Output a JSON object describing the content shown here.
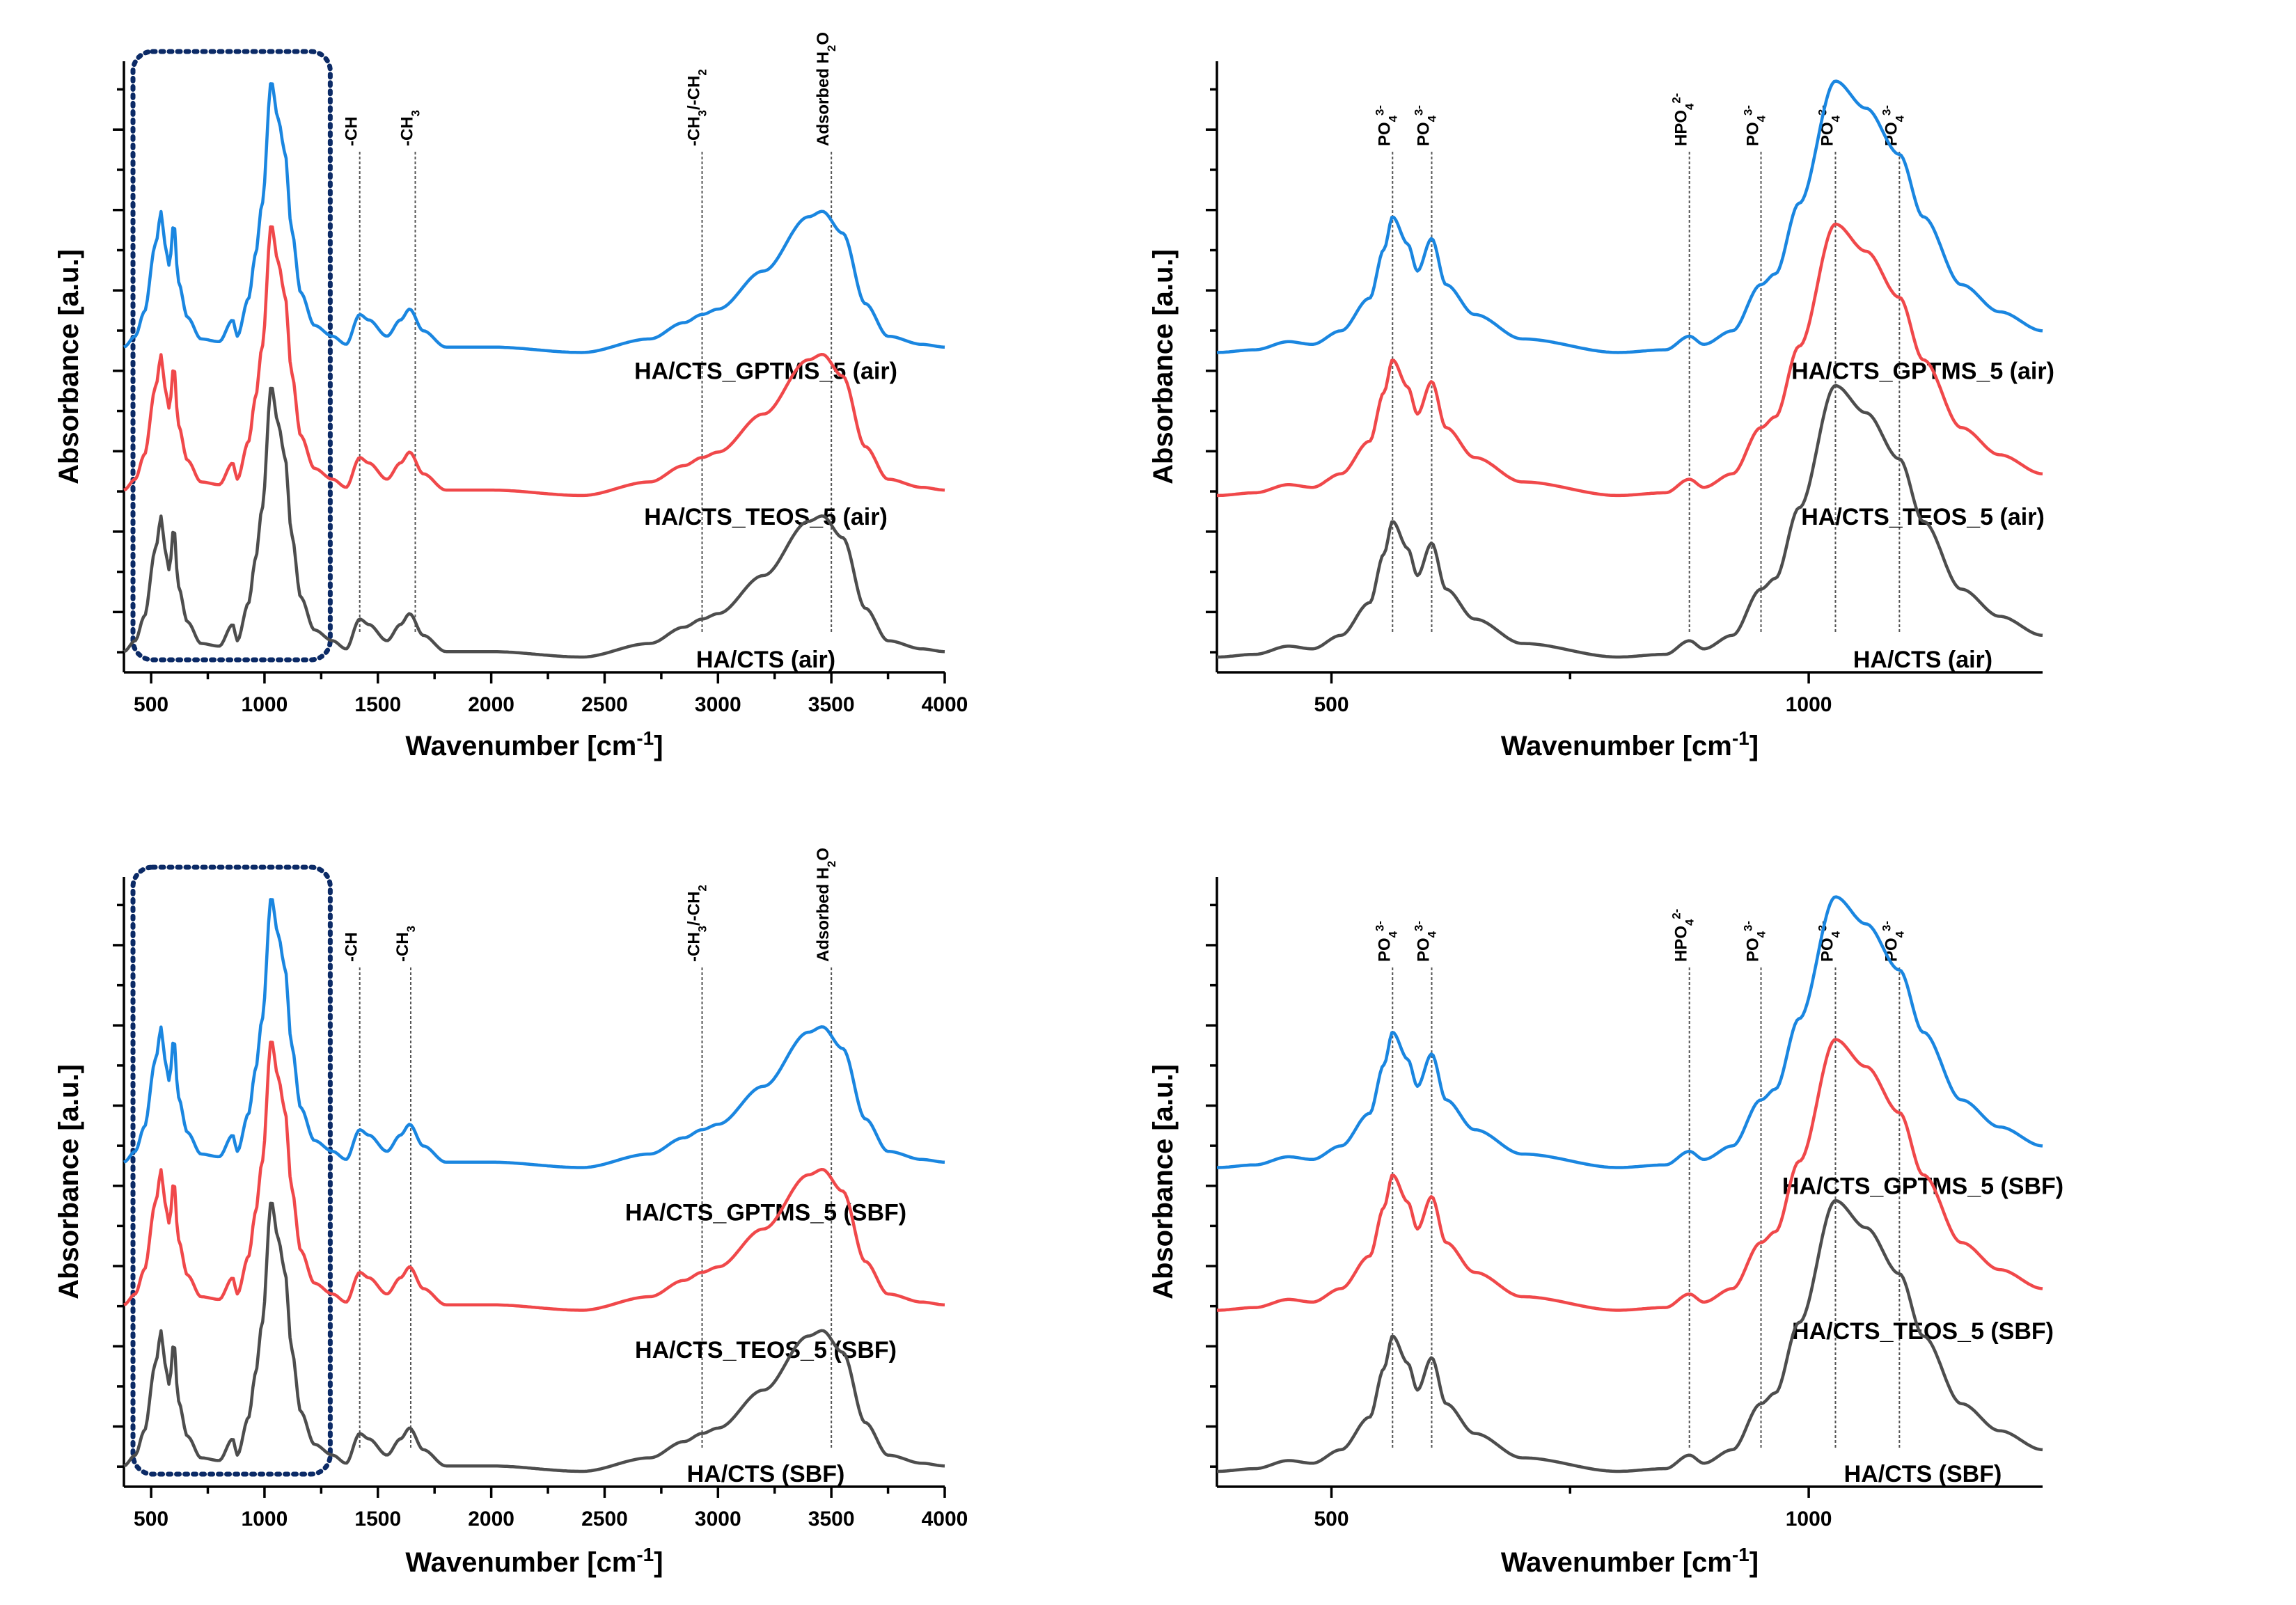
{
  "colors": {
    "blue": "#1a86e0",
    "red": "#f0484a",
    "gray": "#4d4d4d",
    "box": "#0b2a66"
  },
  "chart_data": [
    {
      "id": "a",
      "type": "line",
      "xlabel": "Wavenumber [cm-1]",
      "ylabel": "Absorbance [a.u.]",
      "xlim": [
        380,
        4000
      ],
      "ylim": [
        0,
        4.3
      ],
      "xticks": [
        500,
        1000,
        1500,
        2000,
        2500,
        3000,
        3500,
        4000
      ],
      "xtick_labels": [
        "500",
        "1000",
        "1500",
        "2000",
        "2500",
        "3000",
        "3500",
        "4000"
      ],
      "highlight_box": [
        420,
        1290
      ],
      "annotations": [
        {
          "x": 1420,
          "label": "-CH"
        },
        {
          "x": 1665,
          "label": "-CH3"
        },
        {
          "x": 2930,
          "label": "-CH3/-CH2"
        },
        {
          "x": 3500,
          "label": "Adsorbed H2O"
        }
      ],
      "series": [
        {
          "name": "HA/CTS_GPTMS_5 (air)",
          "color": "blue",
          "offset": 2.3,
          "label_y": 2.1
        },
        {
          "name": "HA/CTS_TEOS_5 (air)",
          "color": "red",
          "offset": 1.22,
          "label_y": 1.0
        },
        {
          "name": "HA/CTS (air)",
          "color": "gray",
          "offset": 0.0,
          "label_y": -0.08
        }
      ],
      "profile": [
        [
          380,
          0.02
        ],
        [
          430,
          0.06
        ],
        [
          470,
          0.15
        ],
        [
          520,
          0.4
        ],
        [
          545,
          0.52
        ],
        [
          560,
          0.4
        ],
        [
          580,
          0.32
        ],
        [
          600,
          0.48
        ],
        [
          620,
          0.26
        ],
        [
          660,
          0.13
        ],
        [
          720,
          0.05
        ],
        [
          800,
          0.04
        ],
        [
          860,
          0.12
        ],
        [
          880,
          0.06
        ],
        [
          930,
          0.2
        ],
        [
          960,
          0.36
        ],
        [
          990,
          0.55
        ],
        [
          1030,
          1.0
        ],
        [
          1060,
          0.86
        ],
        [
          1090,
          0.74
        ],
        [
          1120,
          0.45
        ],
        [
          1160,
          0.22
        ],
        [
          1220,
          0.1
        ],
        [
          1300,
          0.06
        ],
        [
          1360,
          0.03
        ],
        [
          1420,
          0.14
        ],
        [
          1460,
          0.12
        ],
        [
          1540,
          0.06
        ],
        [
          1600,
          0.12
        ],
        [
          1640,
          0.16
        ],
        [
          1700,
          0.08
        ],
        [
          1800,
          0.02
        ],
        [
          2000,
          0.02
        ],
        [
          2400,
          0.0
        ],
        [
          2700,
          0.05
        ],
        [
          2850,
          0.11
        ],
        [
          2930,
          0.14
        ],
        [
          3000,
          0.16
        ],
        [
          3200,
          0.3
        ],
        [
          3400,
          0.5
        ],
        [
          3460,
          0.52
        ],
        [
          3550,
          0.44
        ],
        [
          3650,
          0.18
        ],
        [
          3750,
          0.06
        ],
        [
          3900,
          0.03
        ],
        [
          4000,
          0.02
        ]
      ]
    },
    {
      "id": "b",
      "type": "line",
      "xlabel": "Wavenumber [cm-1]",
      "ylabel": "Absorbance [a.u.]",
      "xlim": [
        380,
        1245
      ],
      "ylim": [
        0,
        4.3
      ],
      "xticks": [
        500,
        1000
      ],
      "xtick_labels": [
        "500",
        "1000"
      ],
      "annotations": [
        {
          "x": 564,
          "label": "PO43-"
        },
        {
          "x": 605,
          "label": "PO43-"
        },
        {
          "x": 875,
          "label": "HPO42-"
        },
        {
          "x": 950,
          "label": "PO43-"
        },
        {
          "x": 1028,
          "label": "PO43-"
        },
        {
          "x": 1095,
          "label": "PO43-"
        }
      ],
      "series": [
        {
          "name": "HA/CTS_GPTMS_5 (air)",
          "color": "blue",
          "offset": 2.3,
          "label_y": 2.1
        },
        {
          "name": "HA/CTS_TEOS_5 (air)",
          "color": "red",
          "offset": 1.22,
          "label_y": 1.0
        },
        {
          "name": "HA/CTS (air)",
          "color": "gray",
          "offset": 0.0,
          "label_y": -0.08
        }
      ],
      "profile": [
        [
          380,
          0.0
        ],
        [
          420,
          0.01
        ],
        [
          455,
          0.04
        ],
        [
          480,
          0.03
        ],
        [
          510,
          0.08
        ],
        [
          540,
          0.2
        ],
        [
          555,
          0.38
        ],
        [
          564,
          0.5
        ],
        [
          580,
          0.4
        ],
        [
          590,
          0.3
        ],
        [
          605,
          0.42
        ],
        [
          620,
          0.25
        ],
        [
          650,
          0.14
        ],
        [
          700,
          0.05
        ],
        [
          800,
          0.0
        ],
        [
          850,
          0.01
        ],
        [
          875,
          0.06
        ],
        [
          890,
          0.03
        ],
        [
          920,
          0.08
        ],
        [
          950,
          0.25
        ],
        [
          965,
          0.29
        ],
        [
          990,
          0.55
        ],
        [
          1028,
          1.0
        ],
        [
          1060,
          0.9
        ],
        [
          1095,
          0.73
        ],
        [
          1120,
          0.5
        ],
        [
          1160,
          0.25
        ],
        [
          1200,
          0.15
        ],
        [
          1245,
          0.08
        ]
      ]
    },
    {
      "id": "c",
      "type": "line",
      "xlabel": "Wavenumber [cm-1]",
      "ylabel": "Absorbance [a.u.]",
      "xlim": [
        380,
        4000
      ],
      "ylim": [
        0,
        4.3
      ],
      "xticks": [
        500,
        1000,
        1500,
        2000,
        2500,
        3000,
        3500,
        4000
      ],
      "xtick_labels": [
        "500",
        "1000",
        "1500",
        "2000",
        "2500",
        "3000",
        "3500",
        "4000"
      ],
      "highlight_box": [
        420,
        1290
      ],
      "annotations": [
        {
          "x": 1420,
          "label": "-CH"
        },
        {
          "x": 1645,
          "label": "-CH3"
        },
        {
          "x": 2930,
          "label": "-CH3/-CH2"
        },
        {
          "x": 3500,
          "label": "Adsorbed H2O"
        }
      ],
      "series": [
        {
          "name": "HA/CTS_GPTMS_5 (SBF)",
          "color": "blue",
          "offset": 2.3,
          "label_y": 1.9
        },
        {
          "name": "HA/CTS_TEOS_5 (SBF)",
          "color": "red",
          "offset": 1.22,
          "label_y": 0.86
        },
        {
          "name": "HA/CTS (SBF)",
          "color": "gray",
          "offset": 0.0,
          "label_y": -0.08
        }
      ],
      "profile": [
        [
          380,
          0.02
        ],
        [
          430,
          0.06
        ],
        [
          470,
          0.15
        ],
        [
          520,
          0.4
        ],
        [
          545,
          0.52
        ],
        [
          560,
          0.4
        ],
        [
          580,
          0.32
        ],
        [
          600,
          0.48
        ],
        [
          620,
          0.26
        ],
        [
          660,
          0.13
        ],
        [
          720,
          0.05
        ],
        [
          800,
          0.04
        ],
        [
          860,
          0.12
        ],
        [
          880,
          0.06
        ],
        [
          930,
          0.2
        ],
        [
          960,
          0.36
        ],
        [
          990,
          0.55
        ],
        [
          1030,
          1.0
        ],
        [
          1060,
          0.86
        ],
        [
          1090,
          0.74
        ],
        [
          1120,
          0.45
        ],
        [
          1160,
          0.22
        ],
        [
          1220,
          0.1
        ],
        [
          1300,
          0.06
        ],
        [
          1360,
          0.03
        ],
        [
          1420,
          0.14
        ],
        [
          1460,
          0.12
        ],
        [
          1540,
          0.06
        ],
        [
          1600,
          0.12
        ],
        [
          1640,
          0.16
        ],
        [
          1700,
          0.08
        ],
        [
          1800,
          0.02
        ],
        [
          2000,
          0.02
        ],
        [
          2400,
          0.0
        ],
        [
          2700,
          0.05
        ],
        [
          2850,
          0.11
        ],
        [
          2930,
          0.14
        ],
        [
          3000,
          0.16
        ],
        [
          3200,
          0.3
        ],
        [
          3400,
          0.5
        ],
        [
          3460,
          0.52
        ],
        [
          3550,
          0.44
        ],
        [
          3650,
          0.18
        ],
        [
          3750,
          0.06
        ],
        [
          3900,
          0.03
        ],
        [
          4000,
          0.02
        ]
      ]
    },
    {
      "id": "d",
      "type": "line",
      "xlabel": "Wavenumber [cm-1]",
      "ylabel": "Absorbance [a.u.]",
      "xlim": [
        380,
        1245
      ],
      "ylim": [
        0,
        4.3
      ],
      "xticks": [
        500,
        1000
      ],
      "xtick_labels": [
        "500",
        "1000"
      ],
      "annotations": [
        {
          "x": 564,
          "label": "PO43-"
        },
        {
          "x": 605,
          "label": "PO43-"
        },
        {
          "x": 875,
          "label": "HPO42-"
        },
        {
          "x": 950,
          "label": "PO43-"
        },
        {
          "x": 1028,
          "label": "PO43-"
        },
        {
          "x": 1095,
          "label": "PO43-"
        }
      ],
      "series": [
        {
          "name": "HA/CTS_GPTMS_5 (SBF)",
          "color": "blue",
          "offset": 2.3,
          "label_y": 2.1
        },
        {
          "name": "HA/CTS_TEOS_5 (SBF)",
          "color": "red",
          "offset": 1.22,
          "label_y": 1.0
        },
        {
          "name": "HA/CTS (SBF)",
          "color": "gray",
          "offset": 0.0,
          "label_y": -0.08
        }
      ],
      "profile": [
        [
          380,
          0.0
        ],
        [
          420,
          0.01
        ],
        [
          455,
          0.04
        ],
        [
          480,
          0.03
        ],
        [
          510,
          0.08
        ],
        [
          540,
          0.2
        ],
        [
          555,
          0.38
        ],
        [
          564,
          0.5
        ],
        [
          580,
          0.4
        ],
        [
          590,
          0.3
        ],
        [
          605,
          0.42
        ],
        [
          620,
          0.25
        ],
        [
          650,
          0.14
        ],
        [
          700,
          0.05
        ],
        [
          800,
          0.0
        ],
        [
          850,
          0.01
        ],
        [
          875,
          0.06
        ],
        [
          890,
          0.03
        ],
        [
          920,
          0.08
        ],
        [
          950,
          0.25
        ],
        [
          965,
          0.29
        ],
        [
          990,
          0.55
        ],
        [
          1028,
          1.0
        ],
        [
          1060,
          0.9
        ],
        [
          1095,
          0.73
        ],
        [
          1120,
          0.5
        ],
        [
          1160,
          0.25
        ],
        [
          1200,
          0.15
        ],
        [
          1245,
          0.08
        ]
      ]
    }
  ]
}
